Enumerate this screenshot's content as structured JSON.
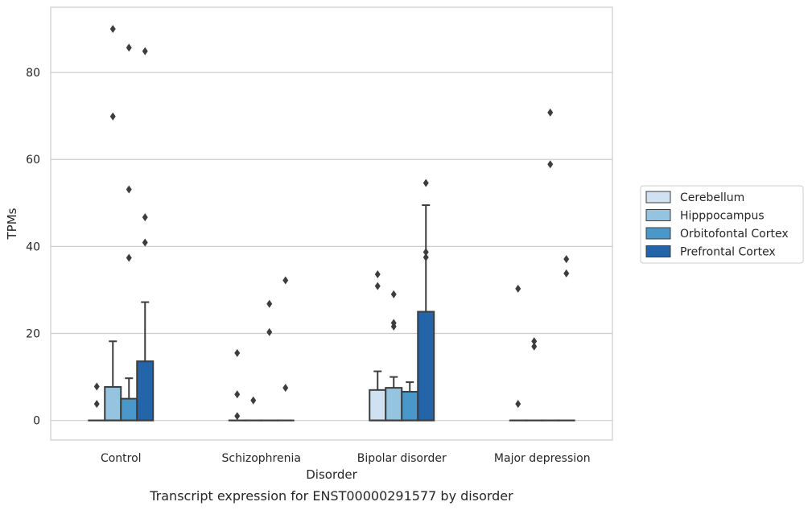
{
  "chart_data": {
    "type": "box",
    "title": "",
    "caption": "Transcript expression for ENST00000291577 by disorder",
    "xlabel": "Disorder",
    "ylabel": "TPMs",
    "ylim": [
      -4.5,
      95
    ],
    "yticks": [
      0,
      20,
      40,
      60,
      80
    ],
    "grid": "horizontal",
    "legend_position": "right",
    "categories": [
      "Control",
      "Schizophrenia",
      "Bipolar disorder",
      "Major depression"
    ],
    "series": [
      {
        "name": "Cerebellum",
        "color": "#d0e1f2",
        "boxes": [
          {
            "q1": 0,
            "median": 0,
            "q3": 0,
            "whisker_low": 0,
            "whisker_high": 0,
            "outliers": [
              3.8,
              7.8
            ]
          },
          {
            "q1": 0,
            "median": 0,
            "q3": 0,
            "whisker_low": 0,
            "whisker_high": 0,
            "outliers": [
              1.0,
              6.0,
              15.5
            ]
          },
          {
            "q1": 0,
            "median": 0,
            "q3": 7.0,
            "whisker_low": 0,
            "whisker_high": 11.3,
            "outliers": [
              30.9,
              33.6
            ]
          },
          {
            "q1": 0,
            "median": 0,
            "q3": 0,
            "whisker_low": 0,
            "whisker_high": 0,
            "outliers": [
              3.8,
              30.3
            ]
          }
        ]
      },
      {
        "name": "Hipppocampus",
        "color": "#94c4df",
        "boxes": [
          {
            "q1": 0,
            "median": 0,
            "q3": 7.7,
            "whisker_low": 0,
            "whisker_high": 18.2,
            "outliers": [
              69.9,
              90.0
            ]
          },
          {
            "q1": 0,
            "median": 0,
            "q3": 0,
            "whisker_low": 0,
            "whisker_high": 0,
            "outliers": [
              4.6
            ]
          },
          {
            "q1": 0,
            "median": 0,
            "q3": 7.5,
            "whisker_low": 0,
            "whisker_high": 10.0,
            "outliers": [
              21.6,
              22.4,
              29.0
            ]
          },
          {
            "q1": 0,
            "median": 0,
            "q3": 0,
            "whisker_low": 0,
            "whisker_high": 0,
            "outliers": [
              17.0,
              18.2
            ]
          }
        ]
      },
      {
        "name": "Orbitofontal Cortex",
        "color": "#4a98c9",
        "boxes": [
          {
            "q1": 0,
            "median": 0,
            "q3": 5.0,
            "whisker_low": 0,
            "whisker_high": 9.7,
            "outliers": [
              37.4,
              53.1,
              85.7
            ]
          },
          {
            "q1": 0,
            "median": 0,
            "q3": 0,
            "whisker_low": 0,
            "whisker_high": 0,
            "outliers": [
              20.3,
              26.8
            ]
          },
          {
            "q1": 0,
            "median": 0,
            "q3": 6.6,
            "whisker_low": 0,
            "whisker_high": 8.8,
            "outliers": []
          },
          {
            "q1": 0,
            "median": 0,
            "q3": 0,
            "whisker_low": 0,
            "whisker_high": 0,
            "outliers": [
              58.9,
              70.8
            ]
          }
        ]
      },
      {
        "name": "Prefrontal Cortex",
        "color": "#2464a8",
        "boxes": [
          {
            "q1": 0,
            "median": 0,
            "q3": 13.6,
            "whisker_low": 0,
            "whisker_high": 27.2,
            "outliers": [
              40.9,
              46.7,
              84.9
            ]
          },
          {
            "q1": 0,
            "median": 0,
            "q3": 0,
            "whisker_low": 0,
            "whisker_high": 0,
            "outliers": [
              7.5,
              32.2
            ]
          },
          {
            "q1": 0,
            "median": 0,
            "q3": 25.0,
            "whisker_low": 0,
            "whisker_high": 49.5,
            "outliers": [
              37.5,
              38.7,
              54.6
            ]
          },
          {
            "q1": 0,
            "median": 0,
            "q3": 0,
            "whisker_low": 0,
            "whisker_high": 0,
            "outliers": [
              33.8,
              37.1
            ]
          }
        ]
      }
    ]
  }
}
